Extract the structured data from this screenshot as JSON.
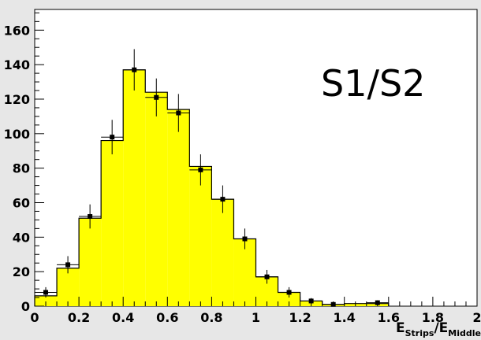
{
  "chart_data": {
    "type": "bar",
    "title": "",
    "annotation": "S1/S2",
    "xlabel": {
      "main_1": "E",
      "sub_1": "Strips",
      "slash": "/",
      "main_2": "E",
      "sub_2": "Middle"
    },
    "ylabel": "",
    "xlim": [
      0,
      2
    ],
    "ylim": [
      0,
      172
    ],
    "bin_width": 0.1,
    "x_ticks": [
      0,
      0.2,
      0.4,
      0.6,
      0.8,
      1,
      1.2,
      1.4,
      1.6,
      1.8,
      2
    ],
    "x_tick_labels": [
      "0",
      "0.2",
      "0.4",
      "0.6",
      "0.8",
      "1",
      "1.2",
      "1.4",
      "1.6",
      "1.8",
      "2"
    ],
    "y_ticks": [
      0,
      20,
      40,
      60,
      80,
      100,
      120,
      140,
      160
    ],
    "y_tick_labels": [
      "0",
      "20",
      "40",
      "60",
      "80",
      "100",
      "120",
      "140",
      "160"
    ],
    "grid": false,
    "legend": "none",
    "series": [
      {
        "style": "filled histogram",
        "color": "#ffff00",
        "bin_edges": [
          0,
          0.1,
          0.2,
          0.3,
          0.4,
          0.5,
          0.6,
          0.7,
          0.8,
          0.9,
          1.0,
          1.1,
          1.2,
          1.3,
          1.4,
          1.5,
          1.6
        ],
        "values": [
          6,
          22,
          51,
          96,
          137,
          124,
          114,
          81,
          62,
          39,
          17,
          8,
          3,
          1,
          1.5,
          1.5
        ]
      },
      {
        "style": "points with error bars",
        "color": "#000000",
        "x": [
          0.05,
          0.15,
          0.25,
          0.35,
          0.45,
          0.55,
          0.65,
          0.75,
          0.85,
          0.95,
          1.05,
          1.15,
          1.25,
          1.35,
          1.55
        ],
        "y": [
          8,
          24,
          52,
          98,
          137,
          121,
          112,
          79,
          62,
          39,
          17,
          8,
          3,
          1,
          2
        ],
        "y_err": [
          3,
          5,
          7,
          10,
          12,
          11,
          11,
          9,
          8,
          6,
          4,
          3,
          1.7,
          1,
          1.4
        ]
      }
    ]
  }
}
